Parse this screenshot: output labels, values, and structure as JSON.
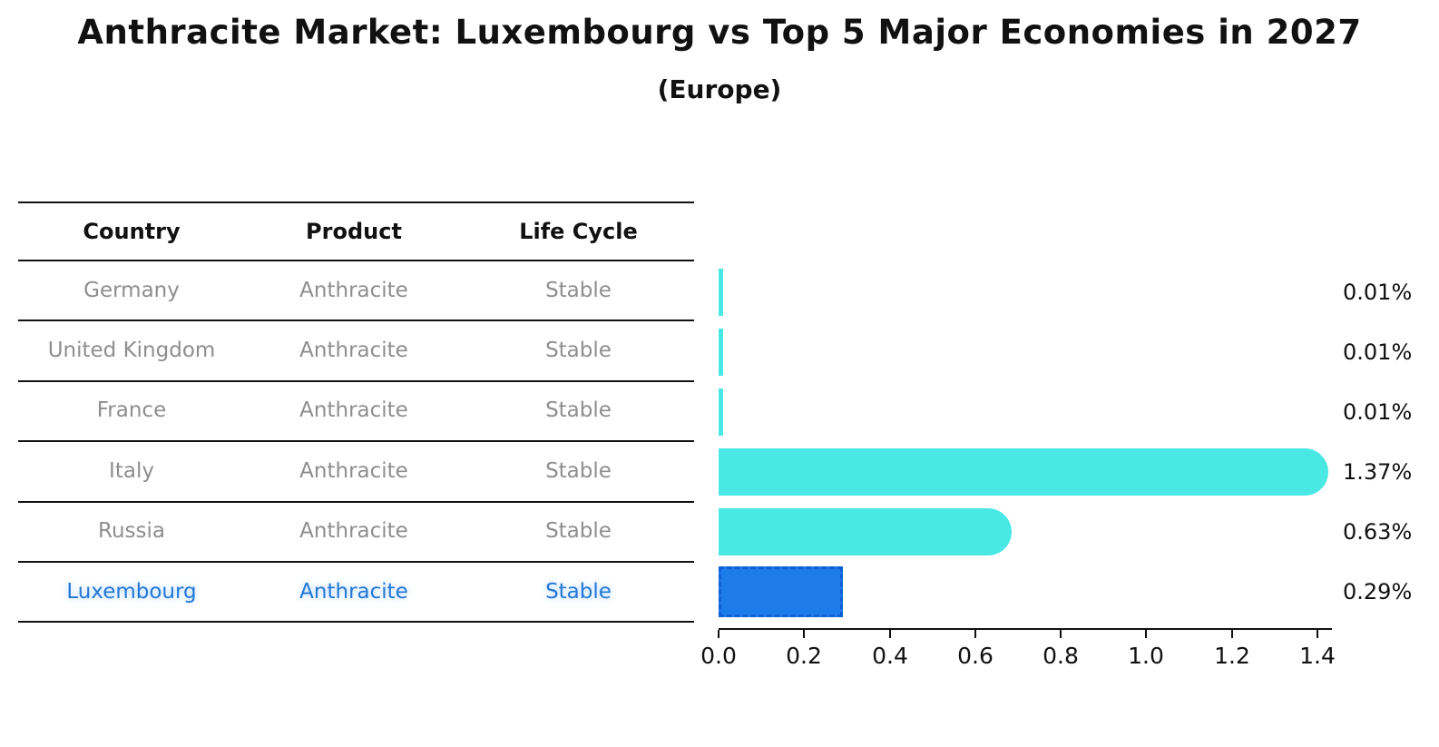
{
  "title": "Anthracite Market: Luxembourg vs Top 5 Major Economies in 2027",
  "subtitle": "(Europe)",
  "table": {
    "headers": [
      "Country",
      "Product",
      "Life Cycle"
    ],
    "rows": [
      {
        "country": "Germany",
        "product": "Anthracite",
        "life_cycle": "Stable",
        "highlighted": false
      },
      {
        "country": "United Kingdom",
        "product": "Anthracite",
        "life_cycle": "Stable",
        "highlighted": false
      },
      {
        "country": "France",
        "product": "Anthracite",
        "life_cycle": "Stable",
        "highlighted": false
      },
      {
        "country": "Italy",
        "product": "Anthracite",
        "life_cycle": "Stable",
        "highlighted": false
      },
      {
        "country": "Russia",
        "product": "Anthracite",
        "life_cycle": "Stable",
        "highlighted": false
      },
      {
        "country": "Luxembourg",
        "product": "Anthracite",
        "life_cycle": "Stable",
        "highlighted": true
      }
    ]
  },
  "chart_data": {
    "type": "bar",
    "orientation": "horizontal",
    "title": "Anthracite Market: Luxembourg vs Top 5 Major Economies in 2027 (Europe)",
    "categories": [
      "Germany",
      "United Kingdom",
      "France",
      "Italy",
      "Russia",
      "Luxembourg"
    ],
    "values": [
      0.01,
      0.01,
      0.01,
      1.37,
      0.63,
      0.29
    ],
    "value_labels": [
      "0.01%",
      "0.01%",
      "0.01%",
      "1.37%",
      "0.63%",
      "0.29%"
    ],
    "xlim": [
      0,
      1.4
    ],
    "xticks": [
      "0.0",
      "0.2",
      "0.4",
      "0.6",
      "0.8",
      "1.0",
      "1.2",
      "1.4"
    ],
    "grid": false,
    "legend": false,
    "bar_color": "#4ae8e4",
    "highlight_index": 5,
    "highlight_color": "#1d7ce8",
    "highlight_border_color": "#0f5fd7"
  },
  "colors": {
    "text_dark": "#111111",
    "text_muted": "#8e8e8e",
    "highlight_text": "#2477d6"
  }
}
